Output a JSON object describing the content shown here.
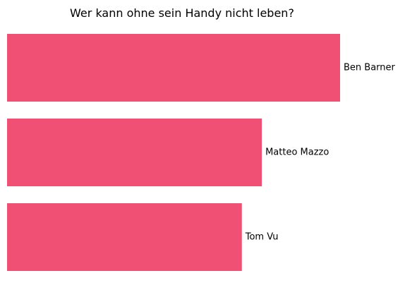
{
  "chart_data": {
    "type": "bar",
    "orientation": "horizontal",
    "title": "Wer kann ohne sein Handy nicht leben?",
    "xlabel": "",
    "ylabel": "",
    "categories": [
      "Ben Barner",
      "Matteo Mazzo",
      "Tom Vu"
    ],
    "values": [
      100,
      76.5,
      70.5
    ],
    "xlim": [
      0,
      100
    ],
    "grid": false,
    "axes_visible": false,
    "legend": "none",
    "bar_color": "#EF5073",
    "labels_position": "right-of-bar"
  }
}
